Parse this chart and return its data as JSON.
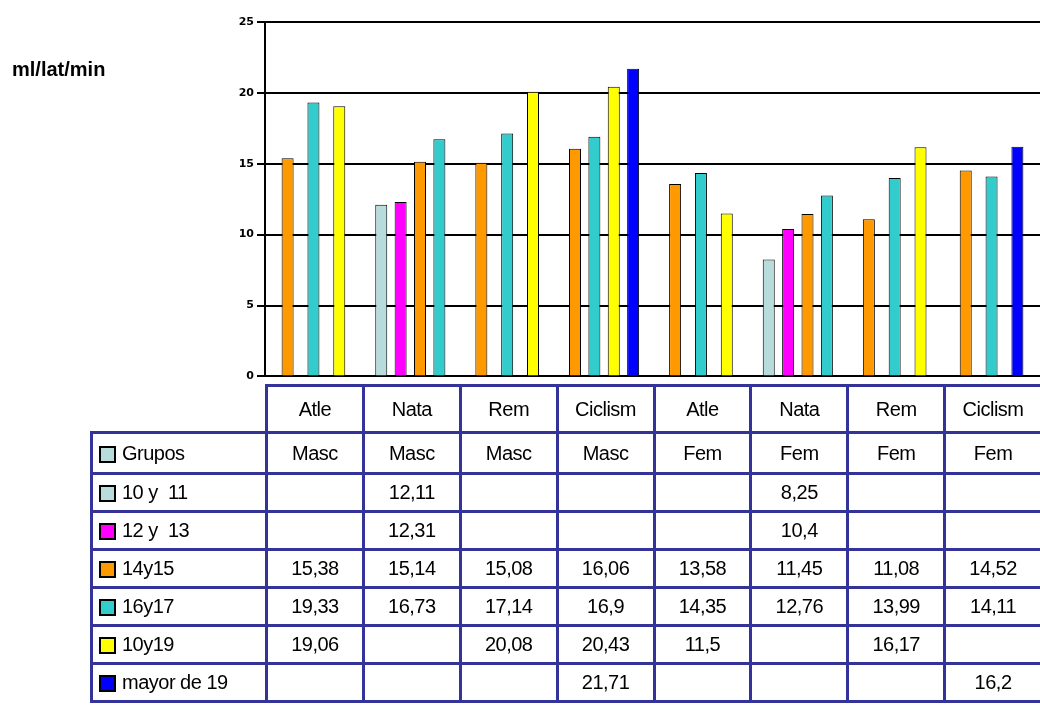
{
  "chart_data": {
    "type": "bar",
    "annotations": [
      "ml/lat/min"
    ],
    "legend_title": "Grupos",
    "categories": [
      "Atle Masc",
      "Nata Masc",
      "Rem Masc",
      "Ciclism Masc",
      "Atle Fem",
      "Nata Fem",
      "Rem Fem",
      "Ciclism Fem"
    ],
    "series": [
      {
        "name": "10 y  11",
        "color": "#b8dcdc",
        "values": [
          null,
          12.11,
          null,
          null,
          null,
          8.25,
          null,
          null
        ],
        "value_labels": [
          null,
          "12,11",
          null,
          null,
          null,
          "8,25",
          null,
          null
        ]
      },
      {
        "name": "12 y  13",
        "color": "#ff00ff",
        "values": [
          null,
          12.31,
          null,
          null,
          null,
          10.4,
          null,
          null
        ],
        "value_labels": [
          null,
          "12,31",
          null,
          null,
          null,
          "10,4",
          null,
          null
        ]
      },
      {
        "name": "14y15",
        "color": "#ff9900",
        "values": [
          15.38,
          15.14,
          15.08,
          16.06,
          13.58,
          11.45,
          11.08,
          14.52
        ],
        "value_labels": [
          "15,38",
          "15,14",
          "15,08",
          "16,06",
          "13,58",
          "11,45",
          "11,08",
          "14,52"
        ]
      },
      {
        "name": "16y17",
        "color": "#33cccc",
        "values": [
          19.33,
          16.73,
          17.14,
          16.9,
          14.35,
          12.76,
          13.99,
          14.11
        ],
        "value_labels": [
          "19,33",
          "16,73",
          "17,14",
          "16,9",
          "14,35",
          "12,76",
          "13,99",
          "14,11"
        ]
      },
      {
        "name": "10y19",
        "color": "#ffff00",
        "values": [
          19.06,
          null,
          20.08,
          20.43,
          11.5,
          null,
          16.17,
          null
        ],
        "value_labels": [
          "19,06",
          null,
          "20,08",
          "20,43",
          "11,5",
          null,
          "16,17",
          null
        ]
      },
      {
        "name": "mayor de 19",
        "color": "#0000ff",
        "values": [
          null,
          null,
          null,
          21.71,
          null,
          null,
          null,
          16.2
        ],
        "value_labels": [
          null,
          null,
          null,
          "21,71",
          null,
          null,
          null,
          "16,2"
        ]
      }
    ],
    "ylim": [
      0,
      25
    ],
    "yticks": [
      0,
      5,
      10,
      15,
      20,
      25
    ],
    "grid": "y",
    "legend": "bottom"
  }
}
